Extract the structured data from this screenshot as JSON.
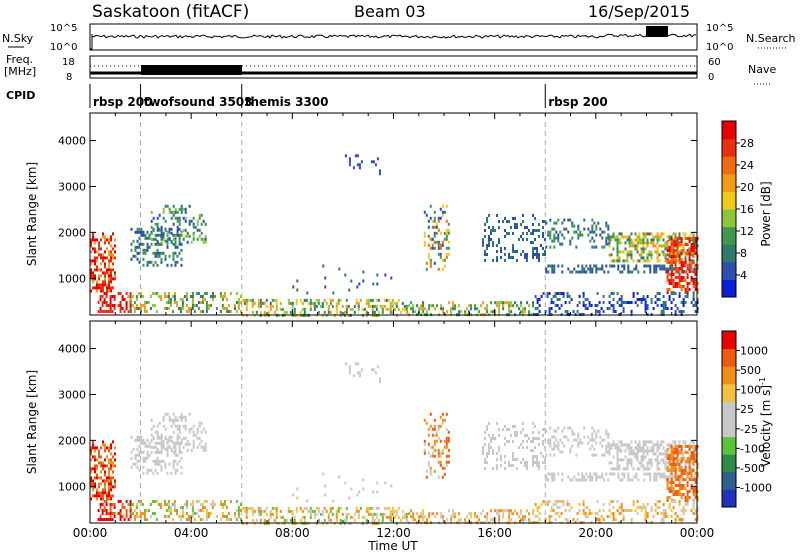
{
  "header": {
    "station": "Saskatoon (fitACF)",
    "beam": "Beam 03",
    "date": "16/Sep/2015"
  },
  "top_panels": {
    "nsky_label": "N.Sky",
    "nsky_ticks": [
      "10^5",
      "10^0"
    ],
    "nsearch_label": "N.Search",
    "nsearch_ticks": [
      "10^5",
      "10^0"
    ],
    "freq_label": "Freq.",
    "freq_unit": "[MHz]",
    "freq_ticks": [
      "18",
      "8"
    ],
    "nave_label": "Nave",
    "nave_ticks": [
      "60",
      "0"
    ],
    "cpid_label": "CPID"
  },
  "cpid_segments": [
    {
      "name": "rbsp 200",
      "start_hour": 0
    },
    {
      "name": "twofsound 3503",
      "start_hour": 2
    },
    {
      "name": "themis 3300",
      "start_hour": 6
    },
    {
      "name": "rbsp 200",
      "start_hour": 18
    }
  ],
  "chart_data": [
    {
      "type": "heatmap",
      "title": "Power",
      "ylabel": "Slant Range [km]",
      "xlabel": "Time UT",
      "x_hours": [
        0,
        4,
        8,
        12,
        16,
        20,
        24
      ],
      "x_tick_labels": [
        "00:00",
        "04:00",
        "08:00",
        "12:00",
        "16:00",
        "20:00",
        "00:00"
      ],
      "ylim": [
        200,
        4600
      ],
      "y_ticks": [
        1000,
        2000,
        3000,
        4000
      ],
      "colorbar": {
        "label": "Power [dB]",
        "ticks": [
          "4",
          "8",
          "12",
          "16",
          "20",
          "24",
          "28"
        ],
        "range": [
          0,
          32
        ],
        "colors": [
          "#0b1fd6",
          "#2f4fb0",
          "#2f7a6a",
          "#3c9a4e",
          "#8cc63c",
          "#f2c81a",
          "#f59a16",
          "#f06a10",
          "#e8300c",
          "#e60000"
        ]
      }
    },
    {
      "type": "heatmap",
      "title": "Velocity",
      "ylabel": "Slant Range [km]",
      "xlabel": "Time UT",
      "x_hours": [
        0,
        4,
        8,
        12,
        16,
        20,
        24
      ],
      "x_tick_labels": [
        "00:00",
        "04:00",
        "08:00",
        "12:00",
        "16:00",
        "20:00",
        "00:00"
      ],
      "ylim": [
        200,
        4600
      ],
      "y_ticks": [
        1000,
        2000,
        3000,
        4000
      ],
      "colorbar": {
        "label": "Velocity [m s^-1]",
        "ticks": [
          "1000",
          "500",
          "100",
          "25",
          "-25",
          "-100",
          "-500",
          "-1000"
        ],
        "colors": [
          "#2233bb",
          "#2f5f8f",
          "#2f8a4a",
          "#5cc23a",
          "#c8c8c8",
          "#c8c8c8",
          "#f5c040",
          "#f0901a",
          "#ee5a10",
          "#e60000"
        ]
      }
    }
  ]
}
